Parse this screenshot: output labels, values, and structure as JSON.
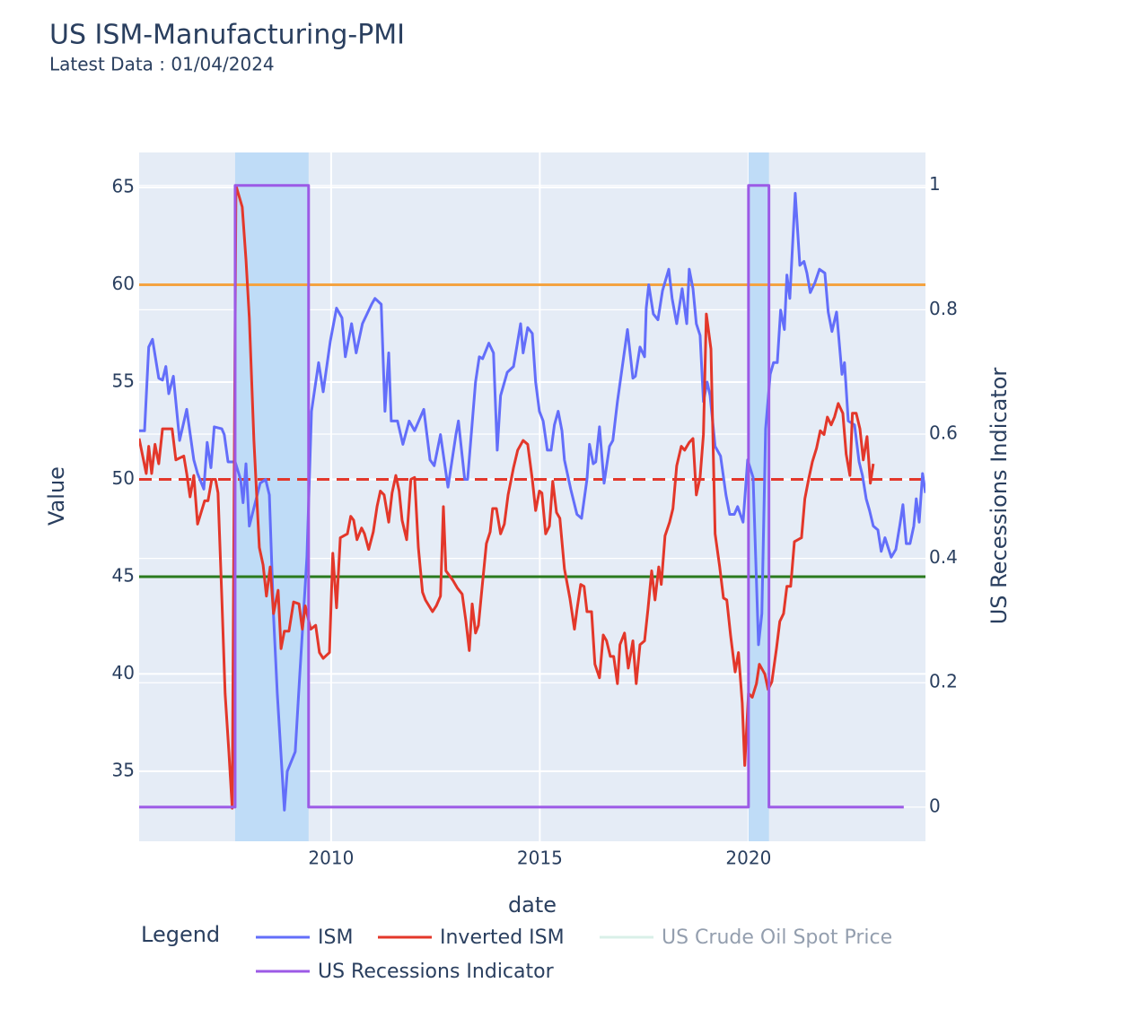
{
  "chart_data": {
    "type": "line",
    "title": "US ISM-Manufacturing-PMI",
    "subtitle": "Latest Data : 01/04/2024",
    "x_label": "date",
    "y_label": "Value",
    "y2_label": "US Recessions Indicator",
    "legend_title": "Legend",
    "legend": "bottom",
    "grid": true,
    "xlim": [
      2005.4,
      2024.24
    ],
    "xticks": [
      2010,
      2015,
      2020
    ],
    "ylim": [
      31.4,
      66.8
    ],
    "yticks": [
      35,
      40,
      45,
      50,
      55,
      60,
      65
    ],
    "y2lim": [
      -0.055,
      1.053
    ],
    "y2ticks": [
      0,
      0.2,
      0.4,
      0.6,
      0.8,
      1
    ],
    "shaded_regions": [
      [
        2007.7,
        2009.46
      ],
      [
        2020.0,
        2020.49
      ]
    ],
    "shade_color": "#bfdcf7",
    "hlines": [
      {
        "y": 60,
        "color": "#f4a340",
        "dash": false
      },
      {
        "y": 50,
        "color": "#e3372a",
        "dash": true
      },
      {
        "y": 45,
        "color": "#2a7a1e",
        "dash": false
      }
    ],
    "series": [
      {
        "name": "ISM",
        "color": "#636efa",
        "x": [
          2005.4,
          2005.53,
          2005.63,
          2005.72,
          2005.87,
          2005.96,
          2006.04,
          2006.11,
          2006.22,
          2006.37,
          2006.54,
          2006.71,
          2006.8,
          2006.95,
          2007.03,
          2007.12,
          2007.2,
          2007.38,
          2007.44,
          2007.53,
          2007.7,
          2007.83,
          2007.89,
          2007.96,
          2008.04,
          2008.17,
          2008.3,
          2008.43,
          2008.52,
          2008.62,
          2008.71,
          2008.88,
          2008.95,
          2009.14,
          2009.25,
          2009.42,
          2009.53,
          2009.7,
          2009.81,
          2009.98,
          2010.13,
          2010.26,
          2010.34,
          2010.49,
          2010.6,
          2010.75,
          2010.97,
          2011.05,
          2011.2,
          2011.29,
          2011.38,
          2011.44,
          2011.59,
          2011.72,
          2011.87,
          2012.0,
          2012.22,
          2012.37,
          2012.47,
          2012.62,
          2012.8,
          2012.99,
          2013.05,
          2013.2,
          2013.27,
          2013.46,
          2013.55,
          2013.63,
          2013.78,
          2013.89,
          2013.98,
          2014.06,
          2014.22,
          2014.37,
          2014.54,
          2014.6,
          2014.71,
          2014.82,
          2014.9,
          2014.99,
          2015.08,
          2015.18,
          2015.27,
          2015.35,
          2015.44,
          2015.53,
          2015.59,
          2015.74,
          2015.89,
          2016.0,
          2016.13,
          2016.19,
          2016.28,
          2016.34,
          2016.43,
          2016.54,
          2016.67,
          2016.75,
          2016.86,
          2016.99,
          2017.1,
          2017.23,
          2017.29,
          2017.4,
          2017.51,
          2017.55,
          2017.61,
          2017.72,
          2017.83,
          2017.94,
          2018.09,
          2018.17,
          2018.28,
          2018.41,
          2018.52,
          2018.58,
          2018.67,
          2018.75,
          2018.84,
          2018.92,
          2019.01,
          2019.08,
          2019.2,
          2019.33,
          2019.46,
          2019.55,
          2019.66,
          2019.74,
          2019.87,
          2019.98,
          2020.11,
          2020.24,
          2020.32,
          2020.41,
          2020.52,
          2020.6,
          2020.69,
          2020.77,
          2020.86,
          2020.92,
          2020.99,
          2021.12,
          2021.23,
          2021.33,
          2021.4,
          2021.48,
          2021.59,
          2021.7,
          2021.83,
          2021.91,
          2022.0,
          2022.11,
          2022.24,
          2022.3,
          2022.39,
          2022.54,
          2022.65,
          2022.73,
          2022.82,
          2022.9,
          2022.99,
          2023.1,
          2023.18,
          2023.27,
          2023.42,
          2023.53,
          2023.63,
          2023.7,
          2023.78,
          2023.87,
          2023.96,
          2024.02,
          2024.09,
          2024.17,
          2024.24
        ],
        "values": [
          52.5,
          52.5,
          56.8,
          57.2,
          55.2,
          55.1,
          55.8,
          54.4,
          55.3,
          52.0,
          53.6,
          51.0,
          50.3,
          49.5,
          51.9,
          50.6,
          52.7,
          52.6,
          52.3,
          50.9,
          50.9,
          50.0,
          48.8,
          50.8,
          47.6,
          48.7,
          49.8,
          50.0,
          49.2,
          43.0,
          39.0,
          33.0,
          35.0,
          36.0,
          40.0,
          46.0,
          53.5,
          56.0,
          54.5,
          57.1,
          58.8,
          58.3,
          56.3,
          58.0,
          56.5,
          58.0,
          59.0,
          59.3,
          59.0,
          53.5,
          56.5,
          53.0,
          53.0,
          51.8,
          53.0,
          52.5,
          53.6,
          51.0,
          50.7,
          52.3,
          49.6,
          52.3,
          53.0,
          50.0,
          50.0,
          55.0,
          56.3,
          56.2,
          57.0,
          56.5,
          51.5,
          54.3,
          55.5,
          55.8,
          58.0,
          56.5,
          57.8,
          57.5,
          55.0,
          53.5,
          53.0,
          51.5,
          51.5,
          52.8,
          53.5,
          52.5,
          51.0,
          49.5,
          48.2,
          48.0,
          50.0,
          51.8,
          50.8,
          50.9,
          52.7,
          49.8,
          51.7,
          52.0,
          54.0,
          56.0,
          57.7,
          55.2,
          55.3,
          56.8,
          56.3,
          58.8,
          60.0,
          58.5,
          58.2,
          59.7,
          60.8,
          59.3,
          58.0,
          59.8,
          58.0,
          60.8,
          59.8,
          58.0,
          57.4,
          54.0,
          55.0,
          54.3,
          51.7,
          51.2,
          49.2,
          48.2,
          48.2,
          48.6,
          47.8,
          51.0,
          50.1,
          41.5,
          43.1,
          52.6,
          55.4,
          56.0,
          56.0,
          58.7,
          57.7,
          60.5,
          59.3,
          64.7,
          61.0,
          61.2,
          60.6,
          59.6,
          60.1,
          60.8,
          60.6,
          58.6,
          57.6,
          58.6,
          55.4,
          56.0,
          53.0,
          52.8,
          50.9,
          50.2,
          49.0,
          48.4,
          47.6,
          47.4,
          46.3,
          47.0,
          46.0,
          46.4,
          47.7,
          48.7,
          46.7,
          46.7,
          47.6,
          49.0,
          47.8,
          50.3,
          49.3
        ]
      },
      {
        "name": "Inverted ISM",
        "color": "#e3372a",
        "x": [
          2005.4,
          2005.57,
          2005.63,
          2005.7,
          2005.78,
          2005.87,
          2005.96,
          2006.19,
          2006.28,
          2006.47,
          2006.54,
          2006.62,
          2006.71,
          2006.8,
          2006.97,
          2007.05,
          2007.14,
          2007.23,
          2007.29,
          2007.38,
          2007.46,
          2007.55,
          2007.63,
          2007.72,
          2007.87,
          2007.96,
          2008.04,
          2008.15,
          2008.28,
          2008.37,
          2008.45,
          2008.54,
          2008.62,
          2008.73,
          2008.8,
          2008.88,
          2008.99,
          2009.1,
          2009.23,
          2009.31,
          2009.38,
          2009.51,
          2009.63,
          2009.72,
          2009.81,
          2009.96,
          2010.04,
          2010.13,
          2010.22,
          2010.39,
          2010.47,
          2010.54,
          2010.62,
          2010.73,
          2010.8,
          2010.9,
          2011.01,
          2011.1,
          2011.18,
          2011.27,
          2011.38,
          2011.46,
          2011.55,
          2011.63,
          2011.7,
          2011.81,
          2011.91,
          2012.0,
          2012.09,
          2012.19,
          2012.26,
          2012.43,
          2012.52,
          2012.62,
          2012.69,
          2012.75,
          2012.92,
          2013.03,
          2013.14,
          2013.23,
          2013.31,
          2013.38,
          2013.46,
          2013.53,
          2013.61,
          2013.72,
          2013.81,
          2013.87,
          2013.96,
          2014.06,
          2014.15,
          2014.24,
          2014.37,
          2014.47,
          2014.6,
          2014.71,
          2014.82,
          2014.9,
          2014.99,
          2015.05,
          2015.14,
          2015.23,
          2015.31,
          2015.4,
          2015.48,
          2015.59,
          2015.72,
          2015.83,
          2015.89,
          2015.98,
          2016.06,
          2016.13,
          2016.24,
          2016.32,
          2016.43,
          2016.52,
          2016.6,
          2016.69,
          2016.77,
          2016.86,
          2016.92,
          2017.03,
          2017.12,
          2017.23,
          2017.31,
          2017.4,
          2017.51,
          2017.59,
          2017.68,
          2017.76,
          2017.85,
          2017.91,
          2018.0,
          2018.11,
          2018.19,
          2018.28,
          2018.39,
          2018.47,
          2018.58,
          2018.67,
          2018.75,
          2018.84,
          2018.92,
          2018.99,
          2019.1,
          2019.2,
          2019.31,
          2019.4,
          2019.48,
          2019.57,
          2019.68,
          2019.76,
          2019.85,
          2019.91,
          2020.0,
          2020.09,
          2020.19,
          2020.26,
          2020.39,
          2020.47,
          2020.56,
          2020.67,
          2020.75,
          2020.84,
          2020.92,
          2021.01,
          2021.1,
          2021.27,
          2021.35,
          2021.44,
          2021.53,
          2021.63,
          2021.72,
          2021.81,
          2021.89,
          2021.98,
          2022.06,
          2022.15,
          2022.26,
          2022.34,
          2022.43,
          2022.49,
          2022.58,
          2022.67,
          2022.75,
          2022.84,
          2022.92,
          2022.99
        ],
        "values": [
          52.1,
          50.3,
          51.7,
          50.3,
          51.8,
          50.8,
          52.6,
          52.6,
          51.0,
          51.2,
          50.3,
          49.1,
          50.2,
          47.7,
          48.9,
          48.9,
          50.0,
          50.0,
          49.3,
          44.0,
          39.0,
          36.0,
          33.1,
          65.1,
          64.0,
          61.3,
          58.3,
          52.0,
          46.5,
          45.6,
          44.0,
          45.5,
          43.1,
          44.3,
          41.3,
          42.2,
          42.2,
          43.7,
          43.6,
          42.3,
          43.5,
          42.3,
          42.5,
          41.1,
          40.8,
          41.1,
          46.2,
          43.4,
          47.0,
          47.2,
          48.1,
          47.9,
          46.9,
          47.5,
          47.2,
          46.4,
          47.3,
          48.6,
          49.4,
          49.2,
          47.8,
          49.3,
          50.2,
          49.4,
          47.9,
          46.9,
          50.0,
          50.1,
          46.5,
          44.2,
          43.8,
          43.2,
          43.5,
          44.0,
          48.6,
          45.3,
          44.8,
          44.4,
          44.1,
          42.7,
          41.2,
          43.6,
          42.1,
          42.5,
          44.3,
          46.7,
          47.3,
          48.5,
          48.5,
          47.2,
          47.7,
          49.2,
          50.6,
          51.5,
          52.0,
          51.8,
          50.0,
          48.4,
          49.4,
          49.3,
          47.2,
          47.6,
          49.9,
          48.3,
          48.0,
          45.4,
          43.9,
          42.3,
          43.3,
          44.6,
          44.5,
          43.2,
          43.2,
          40.5,
          39.8,
          42.0,
          41.7,
          40.9,
          40.9,
          39.5,
          41.5,
          42.1,
          40.3,
          41.7,
          39.5,
          41.5,
          41.7,
          43.3,
          45.3,
          43.8,
          45.5,
          44.6,
          47.1,
          47.8,
          48.5,
          50.7,
          51.7,
          51.5,
          51.9,
          52.1,
          49.2,
          50.1,
          52.3,
          58.5,
          56.7,
          47.2,
          45.5,
          43.9,
          43.8,
          42.0,
          40.1,
          41.1,
          38.5,
          35.3,
          39.0,
          38.8,
          39.5,
          40.5,
          40.0,
          39.2,
          39.6,
          41.3,
          42.7,
          43.1,
          44.5,
          44.5,
          46.8,
          47.0,
          49.0,
          50.0,
          50.9,
          51.6,
          52.5,
          52.3,
          53.2,
          52.8,
          53.2,
          53.9,
          53.4,
          51.3,
          50.2,
          53.4,
          53.4,
          52.6,
          51.0,
          52.2,
          49.8,
          50.8
        ]
      },
      {
        "name": "US Crude Oil Spot Price",
        "color": "#b4e3d2",
        "visible": "legendonly"
      },
      {
        "name": "US Recessions Indicator",
        "color": "#9c5ae6",
        "axis": "y2",
        "x": [
          2005.4,
          2007.7,
          2007.7,
          2009.46,
          2009.46,
          2020.0,
          2020.0,
          2020.49,
          2020.49,
          2023.72
        ],
        "values": [
          0,
          0,
          1,
          1,
          0,
          0,
          1,
          1,
          0,
          0
        ]
      }
    ]
  }
}
